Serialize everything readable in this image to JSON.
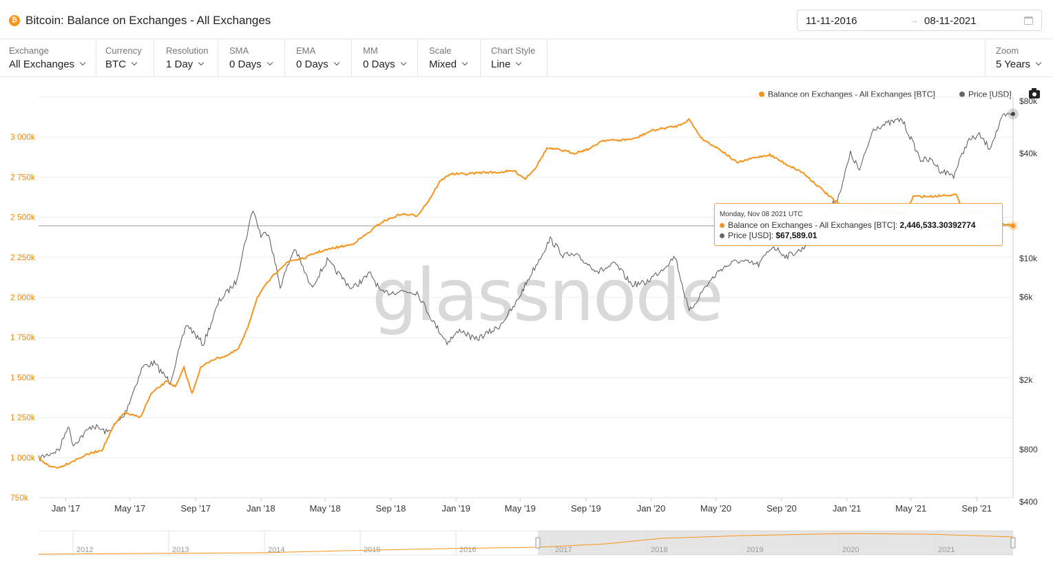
{
  "header": {
    "coin_icon": "bitcoin-icon",
    "title": "Bitcoin: Balance on Exchanges - All Exchanges",
    "date_from": "11-11-2016",
    "date_arrow": "→",
    "date_to": "08-11-2021"
  },
  "controls": [
    {
      "label": "Exchange",
      "value": "All Exchanges"
    },
    {
      "label": "Currency",
      "value": "BTC"
    },
    {
      "label": "Resolution",
      "value": "1 Day"
    },
    {
      "label": "SMA",
      "value": "0 Days"
    },
    {
      "label": "EMA",
      "value": "0 Days"
    },
    {
      "label": "MM",
      "value": "0 Days"
    },
    {
      "label": "Scale",
      "value": "Mixed"
    },
    {
      "label": "Chart Style",
      "value": "Line"
    }
  ],
  "zoom": {
    "label": "Zoom",
    "value": "5 Years"
  },
  "legend": {
    "balance": "Balance on Exchanges - All Exchanges [BTC]",
    "price": "Price [USD]"
  },
  "colors": {
    "balance": "#f7931a",
    "price": "#666666",
    "accent": "#f2a43a"
  },
  "watermark": "glassnode",
  "tooltip": {
    "date": "Monday, Nov 08 2021 UTC",
    "balance_label": "Balance on Exchanges - All Exchanges [BTC]: ",
    "balance_value": "2,446,533.30392774",
    "price_label": "Price [USD]: ",
    "price_value": "$67,589.01"
  },
  "navigator": {
    "years": [
      "2012",
      "2013",
      "2014",
      "2015",
      "2016",
      "2017",
      "2018",
      "2019",
      "2020",
      "2021"
    ]
  },
  "chart_data": {
    "type": "line",
    "title": "Bitcoin: Balance on Exchanges - All Exchanges",
    "x_tick_labels": [
      "Jan '17",
      "May '17",
      "Sep '17",
      "Jan '18",
      "May '18",
      "Sep '18",
      "Jan '19",
      "May '19",
      "Sep '19",
      "Jan '20",
      "May '20",
      "Sep '20",
      "Jan '21",
      "May '21",
      "Sep '21"
    ],
    "y_left": {
      "ticks": [
        "750k",
        "1 000k",
        "1 250k",
        "1 500k",
        "1 750k",
        "2 000k",
        "2 250k",
        "2 500k",
        "2 750k",
        "3 000k"
      ],
      "range": [
        750000,
        3250000
      ],
      "scale": "linear"
    },
    "y_right": {
      "ticks": [
        "$400",
        "$800",
        "$2k",
        "$6k",
        "$10k",
        "$40k",
        "$80k"
      ],
      "range": [
        400,
        80000
      ],
      "scale": "log"
    },
    "x_range": [
      "2016-11-11",
      "2021-11-08"
    ],
    "series": [
      {
        "name": "Balance on Exchanges - All Exchanges [BTC]",
        "axis": "left",
        "points": [
          [
            "2016-11-11",
            1000000
          ],
          [
            "2016-12-01",
            945000
          ],
          [
            "2016-12-20",
            940000
          ],
          [
            "2017-01-15",
            980000
          ],
          [
            "2017-02-10",
            1020000
          ],
          [
            "2017-03-10",
            1050000
          ],
          [
            "2017-04-01",
            1200000
          ],
          [
            "2017-04-20",
            1280000
          ],
          [
            "2017-05-20",
            1250000
          ],
          [
            "2017-06-10",
            1400000
          ],
          [
            "2017-07-10",
            1480000
          ],
          [
            "2017-07-25",
            1440000
          ],
          [
            "2017-08-10",
            1560000
          ],
          [
            "2017-08-25",
            1400000
          ],
          [
            "2017-09-10",
            1560000
          ],
          [
            "2017-10-01",
            1610000
          ],
          [
            "2017-11-01",
            1640000
          ],
          [
            "2017-11-20",
            1680000
          ],
          [
            "2017-12-05",
            1790000
          ],
          [
            "2017-12-25",
            2000000
          ],
          [
            "2018-01-15",
            2100000
          ],
          [
            "2018-02-05",
            2180000
          ],
          [
            "2018-02-25",
            2230000
          ],
          [
            "2018-03-20",
            2240000
          ],
          [
            "2018-04-15",
            2280000
          ],
          [
            "2018-05-20",
            2310000
          ],
          [
            "2018-06-20",
            2330000
          ],
          [
            "2018-07-20",
            2400000
          ],
          [
            "2018-08-15",
            2470000
          ],
          [
            "2018-09-20",
            2520000
          ],
          [
            "2018-10-20",
            2510000
          ],
          [
            "2018-11-10",
            2600000
          ],
          [
            "2018-12-01",
            2720000
          ],
          [
            "2018-12-20",
            2770000
          ],
          [
            "2019-01-20",
            2770000
          ],
          [
            "2019-02-20",
            2780000
          ],
          [
            "2019-03-20",
            2780000
          ],
          [
            "2019-04-20",
            2790000
          ],
          [
            "2019-05-10",
            2740000
          ],
          [
            "2019-05-30",
            2810000
          ],
          [
            "2019-06-20",
            2930000
          ],
          [
            "2019-07-15",
            2920000
          ],
          [
            "2019-08-10",
            2900000
          ],
          [
            "2019-09-10",
            2930000
          ],
          [
            "2019-10-01",
            2980000
          ],
          [
            "2019-11-01",
            2980000
          ],
          [
            "2019-12-01",
            2990000
          ],
          [
            "2020-01-01",
            3040000
          ],
          [
            "2020-02-01",
            3060000
          ],
          [
            "2020-02-20",
            3070000
          ],
          [
            "2020-03-12",
            3110000
          ],
          [
            "2020-04-05",
            2990000
          ],
          [
            "2020-05-10",
            2920000
          ],
          [
            "2020-06-10",
            2840000
          ],
          [
            "2020-07-10",
            2870000
          ],
          [
            "2020-08-10",
            2890000
          ],
          [
            "2020-09-10",
            2830000
          ],
          [
            "2020-10-10",
            2780000
          ],
          [
            "2020-11-10",
            2690000
          ],
          [
            "2020-12-10",
            2600000
          ],
          [
            "2021-01-10",
            2540000
          ],
          [
            "2021-02-10",
            2550000
          ],
          [
            "2021-03-10",
            2540000
          ],
          [
            "2021-04-10",
            2520000
          ],
          [
            "2021-04-25",
            2550000
          ],
          [
            "2021-05-05",
            2630000
          ],
          [
            "2021-06-10",
            2630000
          ],
          [
            "2021-07-10",
            2640000
          ],
          [
            "2021-07-25",
            2640000
          ],
          [
            "2021-08-05",
            2540000
          ],
          [
            "2021-08-20",
            2540000
          ],
          [
            "2021-09-10",
            2530000
          ],
          [
            "2021-10-10",
            2460000
          ],
          [
            "2021-11-08",
            2446533
          ]
        ]
      },
      {
        "name": "Price [USD]",
        "axis": "right",
        "points": [
          [
            "2016-11-11",
            710
          ],
          [
            "2016-12-20",
            800
          ],
          [
            "2017-01-05",
            1100
          ],
          [
            "2017-01-15",
            850
          ],
          [
            "2017-02-20",
            1100
          ],
          [
            "2017-03-20",
            1000
          ],
          [
            "2017-04-20",
            1250
          ],
          [
            "2017-05-25",
            2400
          ],
          [
            "2017-06-15",
            2500
          ],
          [
            "2017-07-15",
            1950
          ],
          [
            "2017-08-15",
            4200
          ],
          [
            "2017-09-15",
            3200
          ],
          [
            "2017-10-15",
            5700
          ],
          [
            "2017-11-15",
            7300
          ],
          [
            "2017-12-17",
            19300
          ],
          [
            "2018-01-01",
            13500
          ],
          [
            "2018-01-15",
            14200
          ],
          [
            "2018-02-06",
            6900
          ],
          [
            "2018-03-05",
            11500
          ],
          [
            "2018-04-05",
            6800
          ],
          [
            "2018-05-05",
            9700
          ],
          [
            "2018-06-20",
            6700
          ],
          [
            "2018-07-25",
            8200
          ],
          [
            "2018-08-15",
            6300
          ],
          [
            "2018-09-20",
            6500
          ],
          [
            "2018-10-20",
            6400
          ],
          [
            "2018-11-20",
            4300
          ],
          [
            "2018-12-15",
            3300
          ],
          [
            "2019-01-10",
            3900
          ],
          [
            "2019-02-05",
            3400
          ],
          [
            "2019-03-20",
            4000
          ],
          [
            "2019-04-20",
            5300
          ],
          [
            "2019-05-20",
            8000
          ],
          [
            "2019-06-26",
            12900
          ],
          [
            "2019-07-20",
            10500
          ],
          [
            "2019-08-15",
            10300
          ],
          [
            "2019-09-25",
            8400
          ],
          [
            "2019-10-26",
            9300
          ],
          [
            "2019-11-25",
            7100
          ],
          [
            "2019-12-20",
            7200
          ],
          [
            "2020-01-20",
            8600
          ],
          [
            "2020-02-15",
            10300
          ],
          [
            "2020-03-12",
            4900
          ],
          [
            "2020-04-10",
            6800
          ],
          [
            "2020-05-10",
            8700
          ],
          [
            "2020-06-10",
            9700
          ],
          [
            "2020-07-20",
            9200
          ],
          [
            "2020-08-15",
            11800
          ],
          [
            "2020-09-10",
            10300
          ],
          [
            "2020-10-10",
            11300
          ],
          [
            "2020-11-10",
            15500
          ],
          [
            "2020-12-17",
            23000
          ],
          [
            "2021-01-08",
            40000
          ],
          [
            "2021-01-25",
            32000
          ],
          [
            "2021-02-20",
            56000
          ],
          [
            "2021-03-15",
            59000
          ],
          [
            "2021-04-14",
            63000
          ],
          [
            "2021-05-19",
            37000
          ],
          [
            "2021-06-10",
            36500
          ],
          [
            "2021-06-25",
            32000
          ],
          [
            "2021-07-20",
            30000
          ],
          [
            "2021-08-15",
            47000
          ],
          [
            "2021-09-06",
            51000
          ],
          [
            "2021-09-25",
            43000
          ],
          [
            "2021-10-20",
            65000
          ],
          [
            "2021-11-08",
            67589
          ]
        ]
      }
    ],
    "legend_position": "top-right",
    "grid": true
  }
}
